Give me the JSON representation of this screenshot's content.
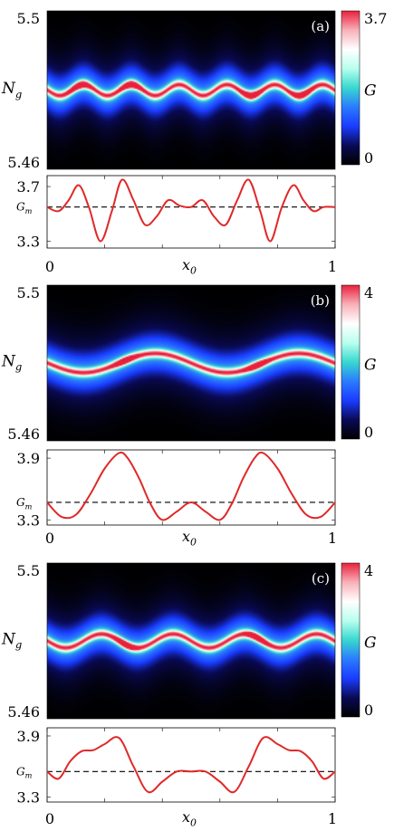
{
  "chart_data": [
    {
      "panel": "(a)",
      "type": "heatmap",
      "ylabel": "N",
      "ylabel_sub": "g",
      "ytick_labels": [
        "5.5",
        "5.46"
      ],
      "colorbar": {
        "label": "G",
        "tick_labels": [
          "3.7",
          "0"
        ],
        "range": [
          0,
          3.7
        ],
        "colors": [
          "#000000",
          "#0a0a55",
          "#1a3cff",
          "#2a7cff",
          "#38d8d0",
          "#b8ffee",
          "#ffffff",
          "#f8b0b8",
          "#e8203c"
        ]
      },
      "ridge": {
        "center_N": 5.48,
        "wiggle_N": 0.0014,
        "cycles": 6,
        "hot_spots_x": [
          0.11,
          0.29,
          0.71,
          0.89
        ]
      },
      "lineplot": {
        "type": "line",
        "series_color": "#e02828",
        "xlabel": "x",
        "xlabel_sub": "0",
        "xtick_labels": [
          "0",
          "1"
        ],
        "ytick_labels": [
          "3.7",
          "3.3"
        ],
        "ref_label": "G",
        "ref_label_sub": "m",
        "ylim": [
          3.25,
          3.78
        ],
        "ref_value": 3.55,
        "x": [
          0.0,
          0.04,
          0.075,
          0.11,
          0.145,
          0.185,
          0.225,
          0.26,
          0.3,
          0.34,
          0.38,
          0.42,
          0.46,
          0.5,
          0.54,
          0.58,
          0.62,
          0.66,
          0.7,
          0.74,
          0.775,
          0.815,
          0.855,
          0.89,
          0.925,
          0.96,
          1.0
        ],
        "y": [
          3.55,
          3.52,
          3.6,
          3.71,
          3.55,
          3.3,
          3.52,
          3.75,
          3.6,
          3.42,
          3.48,
          3.6,
          3.56,
          3.55,
          3.6,
          3.48,
          3.42,
          3.6,
          3.75,
          3.52,
          3.3,
          3.55,
          3.71,
          3.6,
          3.52,
          3.55,
          3.55
        ]
      }
    },
    {
      "panel": "(b)",
      "type": "heatmap",
      "ylabel": "N",
      "ylabel_sub": "g",
      "ytick_labels": [
        "5.5",
        "5.46"
      ],
      "colorbar": {
        "label": "G",
        "tick_labels": [
          "4",
          "0"
        ],
        "range": [
          0,
          4
        ],
        "colors": [
          "#000000",
          "#0a0a55",
          "#1a3cff",
          "#2a7cff",
          "#38d8d0",
          "#b8ffee",
          "#ffffff",
          "#f8b0b8",
          "#e8203c"
        ]
      },
      "ridge": {
        "center_N": 5.48,
        "wiggle_N": 0.0025,
        "cycles": 2,
        "hot_spots_x": [
          0.27,
          0.73
        ]
      },
      "lineplot": {
        "type": "line",
        "series_color": "#e02828",
        "xlabel": "x",
        "xlabel_sub": "0",
        "xtick_labels": [
          "0",
          "1"
        ],
        "ytick_labels": [
          "3.9",
          "3.3"
        ],
        "ref_label": "G",
        "ref_label_sub": "m",
        "ylim": [
          3.25,
          3.98
        ],
        "ref_value": 3.47,
        "x": [
          0.0,
          0.05,
          0.1,
          0.15,
          0.2,
          0.25,
          0.28,
          0.32,
          0.36,
          0.4,
          0.45,
          0.5,
          0.55,
          0.6,
          0.64,
          0.68,
          0.72,
          0.75,
          0.8,
          0.85,
          0.9,
          0.95,
          1.0
        ],
        "y": [
          3.47,
          3.33,
          3.35,
          3.55,
          3.8,
          3.95,
          3.9,
          3.7,
          3.45,
          3.3,
          3.38,
          3.47,
          3.38,
          3.3,
          3.45,
          3.7,
          3.9,
          3.95,
          3.8,
          3.55,
          3.35,
          3.33,
          3.47
        ]
      }
    },
    {
      "panel": "(c)",
      "type": "heatmap",
      "ylabel": "N",
      "ylabel_sub": "g",
      "ytick_labels": [
        "5.5",
        "5.46"
      ],
      "colorbar": {
        "label": "G",
        "tick_labels": [
          "4",
          "0"
        ],
        "range": [
          0,
          4
        ],
        "colors": [
          "#000000",
          "#0a0a55",
          "#1a3cff",
          "#2a7cff",
          "#38d8d0",
          "#b8ffee",
          "#ffffff",
          "#f8b0b8",
          "#e8203c"
        ]
      },
      "ridge": {
        "center_N": 5.48,
        "wiggle_N": 0.0018,
        "cycles": 4,
        "hot_spots_x": [
          0.27,
          0.73
        ]
      },
      "lineplot": {
        "type": "line",
        "series_color": "#e02828",
        "xlabel": "x",
        "xlabel_sub": "0",
        "xtick_labels": [
          "0",
          "1"
        ],
        "ytick_labels": [
          "3.9",
          "3.3"
        ],
        "ref_label": "G",
        "ref_label_sub": "m",
        "ylim": [
          3.25,
          3.98
        ],
        "ref_value": 3.55,
        "x": [
          0.0,
          0.04,
          0.08,
          0.12,
          0.16,
          0.2,
          0.25,
          0.3,
          0.35,
          0.4,
          0.45,
          0.5,
          0.55,
          0.6,
          0.65,
          0.7,
          0.75,
          0.8,
          0.84,
          0.88,
          0.92,
          0.96,
          1.0
        ],
        "y": [
          3.55,
          3.48,
          3.65,
          3.75,
          3.76,
          3.82,
          3.88,
          3.6,
          3.35,
          3.45,
          3.55,
          3.55,
          3.55,
          3.45,
          3.35,
          3.6,
          3.88,
          3.82,
          3.76,
          3.75,
          3.65,
          3.48,
          3.55
        ]
      }
    }
  ]
}
